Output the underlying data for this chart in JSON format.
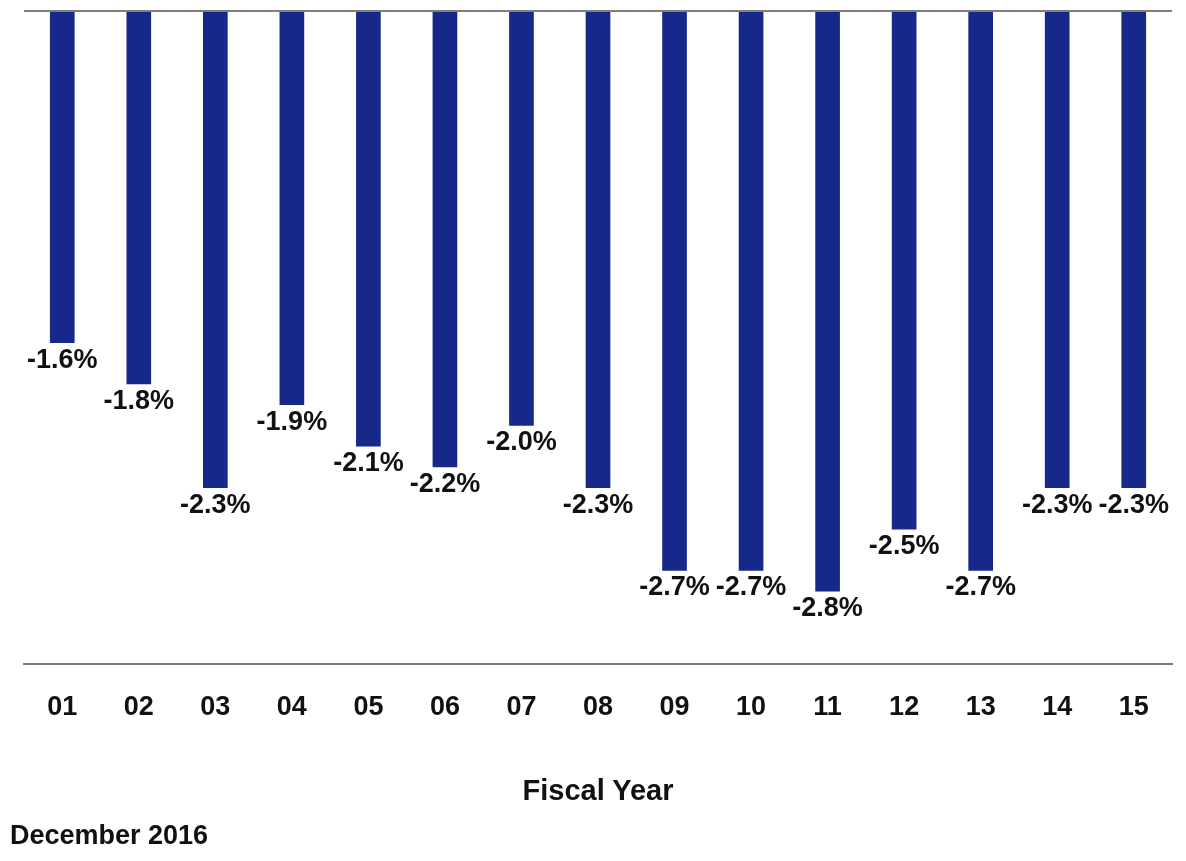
{
  "chart_data": {
    "type": "bar",
    "xlabel": "Fiscal Year",
    "categories": [
      "01",
      "02",
      "03",
      "04",
      "05",
      "06",
      "07",
      "08",
      "09",
      "10",
      "11",
      "12",
      "13",
      "14",
      "15"
    ],
    "series": [
      {
        "color": "#16298a",
        "values": [
          -1.6,
          -1.8,
          -2.3,
          -1.9,
          -2.1,
          -2.2,
          -2.0,
          -2.3,
          -2.7,
          -2.7,
          -2.8,
          -2.5,
          -2.7,
          -2.3,
          -2.3
        ],
        "value_labels": [
          "-1.6%",
          "-1.8%",
          "-2.3%",
          "-1.9%",
          "-2.1%",
          "-2.2%",
          "-2.0%",
          "-2.3%",
          "-2.7%",
          "-2.7%",
          "-2.8%",
          "-2.5%",
          "-2.7%",
          "-2.3%",
          "-2.3%"
        ]
      }
    ],
    "ylim": [
      -3.15,
      0
    ],
    "tick_labels": "x",
    "grid": false,
    "legend": false,
    "ref_lines": [
      {
        "axis": "y",
        "value": 0,
        "color": "#808080"
      }
    ],
    "annotations": [
      "December 2016"
    ]
  }
}
